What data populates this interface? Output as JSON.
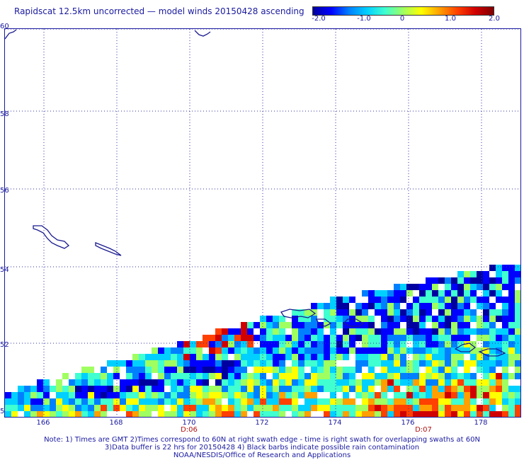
{
  "title": "Rapidscat 12.5km uncorrected — model winds 20150428 ascending",
  "colorbar": {
    "ticks": [
      "-2.0",
      "-1.0",
      "0",
      "1.0",
      "2.0"
    ],
    "colors": [
      "#0000a0",
      "#0000ff",
      "#0080ff",
      "#00d0ff",
      "#40ffd0",
      "#a0ff60",
      "#ffff00",
      "#ffa000",
      "#ff4000",
      "#d00000",
      "#800000"
    ]
  },
  "map": {
    "lat_labels": [
      "60",
      "58",
      "56",
      "54",
      "52",
      "5"
    ],
    "lon_labels": [
      "166",
      "168",
      "170",
      "172",
      "174",
      "176",
      "178"
    ],
    "time_labels": [
      "D:06",
      "D:07"
    ],
    "grid": true,
    "swath_field": "wind speed difference (scat − model), values −2.0 to 2.0",
    "coastlines": "Aleutian Islands, Pribilof Islands",
    "lon_range": [
      165,
      179
    ],
    "lat_range": [
      50,
      60
    ]
  },
  "notes": {
    "line1": "Note: 1) Times are GMT 2)Times correspond to 60N at right swath edge - time is right swath for overlapping swaths at 60N",
    "line2": "3)Data buffer is 22 hrs for 20150428 4) Black barbs indicate possible rain contamination",
    "line3": "NOAA/NESDIS/Office of Research and Applications"
  }
}
